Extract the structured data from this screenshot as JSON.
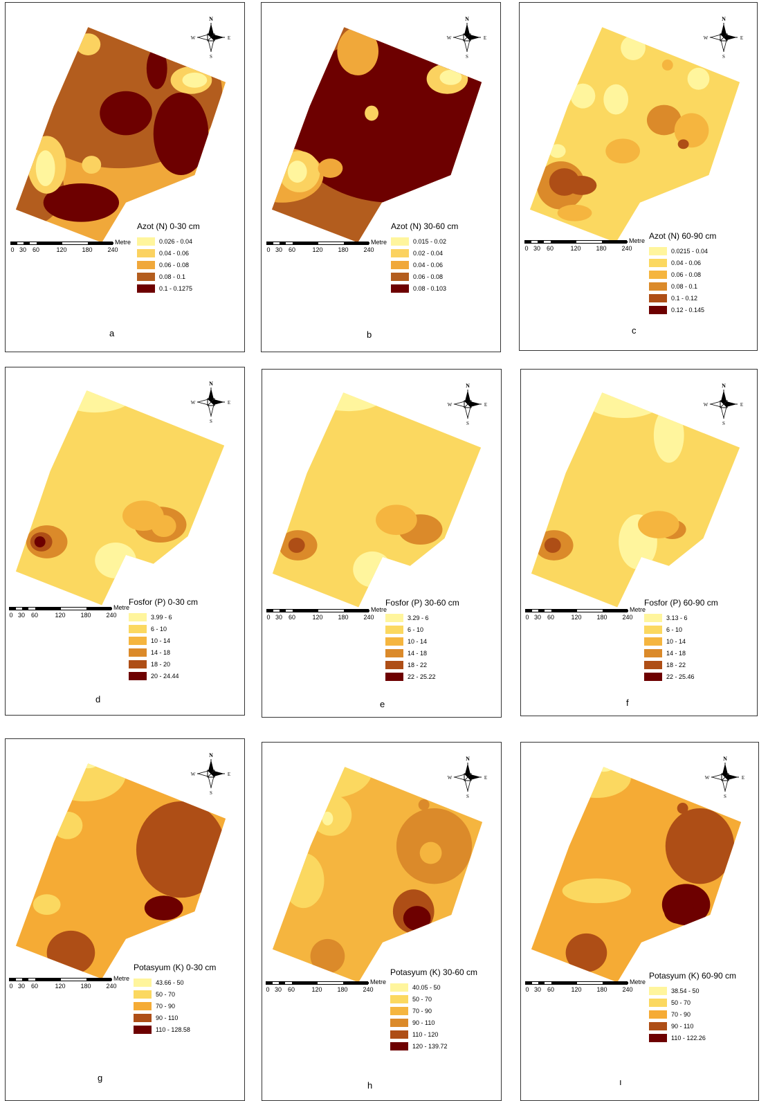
{
  "compass": {
    "n": "N",
    "s": "S",
    "e": "E",
    "w": "W"
  },
  "scale": {
    "unit": "Metre",
    "ticks": [
      "0",
      "30",
      "60",
      "120",
      "180",
      "240"
    ]
  },
  "palettes": {
    "five_a": [
      "#fff59d",
      "#fbd260",
      "#f0a83a",
      "#b35d1e",
      "#6d0000"
    ],
    "six": [
      "#fff59d",
      "#fbd860",
      "#f5b53f",
      "#db8a2a",
      "#ae4e16",
      "#6d0000"
    ],
    "five_k": [
      "#fff59d",
      "#fbd860",
      "#f5ab35",
      "#ae4e16",
      "#6d0000"
    ]
  },
  "panels": [
    {
      "letter": "a",
      "title": "Azot (N) 0-30 cm",
      "classes": [
        "0.026 - 0.04",
        "0.04 - 0.06",
        "0.06 - 0.08",
        "0.08 - 0.1",
        "0.1 - 0.1275"
      ]
    },
    {
      "letter": "b",
      "title": "Azot (N) 30-60 cm",
      "classes": [
        "0.015 - 0.02",
        "0.02 - 0.04",
        "0.04 - 0.06",
        "0.06 - 0.08",
        "0.08 - 0.103"
      ]
    },
    {
      "letter": "c",
      "title": "Azot (N) 60-90 cm",
      "classes": [
        "0.0215 - 0.04",
        "0.04 - 0.06",
        "0.06 - 0.08",
        "0.08 - 0.1",
        "0.1 - 0.12",
        "0.12 - 0.145"
      ]
    },
    {
      "letter": "d",
      "title": "Fosfor (P) 0-30 cm",
      "classes": [
        "3.99 - 6",
        "6 - 10",
        "10 - 14",
        "14 - 18",
        "18 - 20",
        "20 - 24.44"
      ]
    },
    {
      "letter": "e",
      "title": "Fosfor (P) 30-60 cm",
      "classes": [
        "3.29 - 6",
        "6 - 10",
        "10 - 14",
        "14 - 18",
        "18 - 22",
        "22 - 25.22"
      ]
    },
    {
      "letter": "f",
      "title": "Fosfor (P) 60-90 cm",
      "classes": [
        "3.13 - 6",
        "6 - 10",
        "10 - 14",
        "14 - 18",
        "18 - 22",
        "22 - 25.46"
      ]
    },
    {
      "letter": "g",
      "title": "Potasyum (K) 0-30 cm",
      "classes": [
        "43.66 - 50",
        "50 - 70",
        "70 - 90",
        "90 - 110",
        "110 - 128.58"
      ]
    },
    {
      "letter": "h",
      "title": "Potasyum (K) 30-60 cm",
      "classes": [
        "40.05 - 50",
        "50 - 70",
        "70 - 90",
        "90 - 110",
        "110 - 120",
        "120 - 139.72"
      ]
    },
    {
      "letter": "ı",
      "title": "Potasyum (K) 60-90 cm",
      "classes": [
        "38.54 - 50",
        "50 - 70",
        "70 - 90",
        "90 - 110",
        "110 - 122.26"
      ]
    }
  ]
}
